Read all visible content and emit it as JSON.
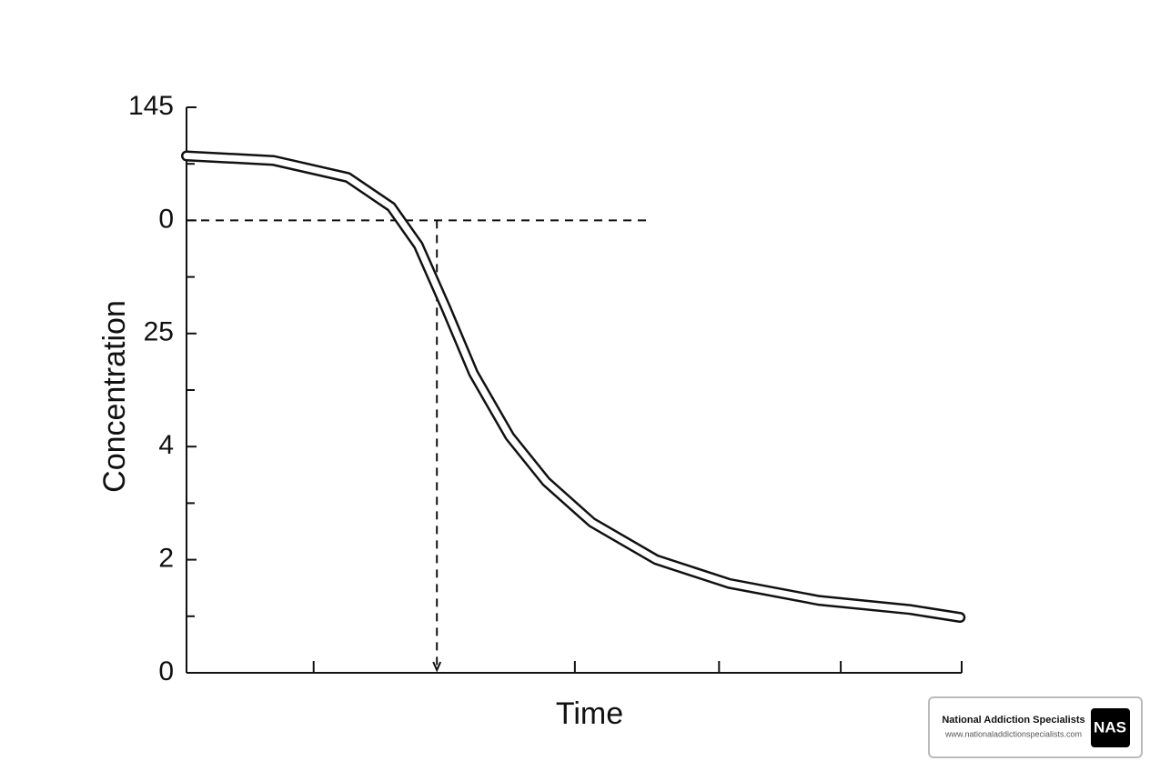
{
  "chart_data": {
    "type": "line",
    "y_label": "Concentration",
    "x_label": "Time",
    "xlim": [
      0,
      100
    ],
    "ylim": [
      0,
      5
    ],
    "xticks": [
      16.4,
      50.1,
      68.7,
      84.4
    ],
    "yticks": [
      {
        "value": 5,
        "label": "145"
      },
      {
        "value": 4,
        "label": "0"
      },
      {
        "value": 3,
        "label": "25"
      },
      {
        "value": 2,
        "label": "4"
      },
      {
        "value": 1,
        "label": "2"
      },
      {
        "value": 0,
        "label": "0"
      }
    ],
    "yminorticks": [
      4.5,
      3.5,
      2.5,
      1.5,
      0.5
    ],
    "color": "#111111",
    "x": [
      0,
      11.2,
      20.8,
      26.4,
      29.9,
      33.5,
      37.0,
      41.7,
      46.4,
      52.3,
      60.6,
      70.0,
      81.6,
      93.3,
      99.8
    ],
    "values": [
      4.57,
      4.53,
      4.38,
      4.12,
      3.78,
      3.22,
      2.65,
      2.09,
      1.69,
      1.33,
      1.0,
      0.79,
      0.64,
      0.56,
      0.49
    ],
    "reference": {
      "y": 4,
      "x_end": 59.6,
      "x": 32.3
    }
  },
  "watermark": {
    "name": "National Addiction Specialists",
    "url": "www.nationaladdictionspecialists.com",
    "logo": "NAS"
  }
}
